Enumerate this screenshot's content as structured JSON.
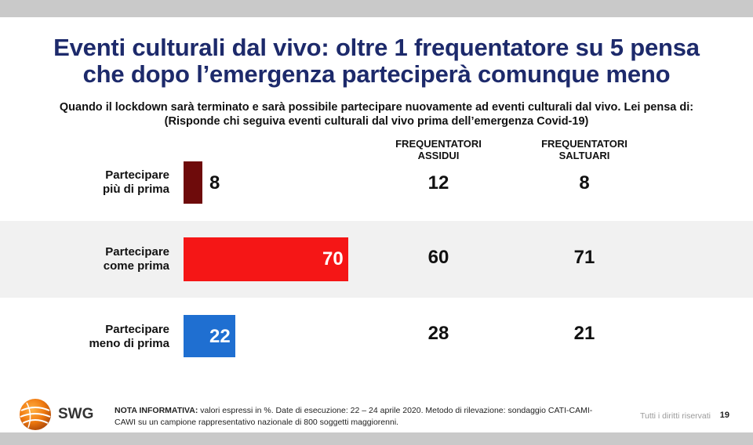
{
  "title_line1": "Eventi culturali dal vivo: oltre 1 frequentatore su 5 pensa",
  "title_line2": "che dopo l’emergenza parteciperà comunque meno",
  "question": "Quando il lockdown sarà terminato e sarà possibile partecipare nuovamente ad eventi culturali dal vivo. Lei pensa di:",
  "question_note": "(Risponde chi seguiva eventi culturali dal vivo prima dell’emergenza Covid-19)",
  "columns": [
    {
      "line1": "FREQUENTATORI",
      "line2": "ASSIDUI"
    },
    {
      "line1": "FREQUENTATORI",
      "line2": "SALTUARI"
    }
  ],
  "rows": [
    {
      "label1": "Partecipare",
      "label2": "più di prima",
      "total": "8",
      "assidui": "12",
      "saltuari": "8"
    },
    {
      "label1": "Partecipare",
      "label2": "come prima",
      "total": "70",
      "assidui": "60",
      "saltuari": "71"
    },
    {
      "label1": "Partecipare",
      "label2": "meno di prima",
      "total": "22",
      "assidui": "28",
      "saltuari": "21"
    }
  ],
  "chart_data": {
    "type": "bar",
    "orientation": "horizontal",
    "title": "Eventi culturali dal vivo: oltre 1 frequentatore su 5 pensa che dopo l’emergenza parteciperà comunque meno",
    "categories": [
      "Partecipare più di prima",
      "Partecipare come prima",
      "Partecipare meno di prima"
    ],
    "values": [
      8,
      70,
      22
    ],
    "colors": [
      "#6e0b0b",
      "#f51616",
      "#1f6fd1"
    ],
    "xlim": [
      0,
      100
    ],
    "table": {
      "columns": [
        "FREQUENTATORI ASSIDUI",
        "FREQUENTATORI SALTUARI"
      ],
      "values": [
        [
          12,
          8
        ],
        [
          60,
          71
        ],
        [
          28,
          21
        ]
      ]
    }
  },
  "footer": {
    "brand": "SWG",
    "note_label": "NOTA INFORMATIVA:",
    "note_text": " valori espressi in %. Date di esecuzione: 22 – 24 aprile 2020. Metodo di rilevazione: sondaggio CATI-CAMI-CAWI su un campione rappresentativo nazionale di 800 soggetti maggiorenni.",
    "rights": "Tutti i diritti riservati",
    "page": "19"
  }
}
